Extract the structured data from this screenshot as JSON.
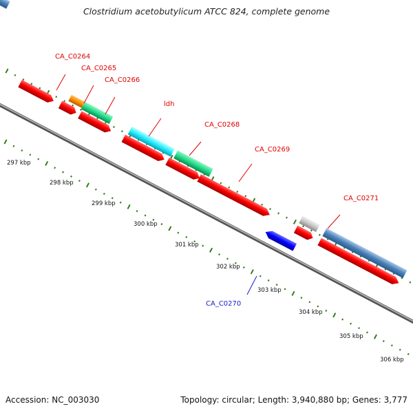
{
  "header": {
    "title": "Clostridium acetobutylicum ATCC 824, complete genome"
  },
  "footer": {
    "accession": "Accession: NC_003030",
    "topology": "Topology: circular; Length: 3,940,880 bp; Genes: 3,777"
  },
  "colors": {
    "backbone": "#8a8a8a",
    "tick": "#2e7d1a",
    "label_red": "#e00000",
    "label_blue": "#1a1acc",
    "gene_red": "#ff0000",
    "gene_blue": "#0000ff"
  },
  "kbp_labels": [
    "297 kbp",
    "298 kbp",
    "299 kbp",
    "300 kbp",
    "301 kbp",
    "302 kbp",
    "303 kbp",
    "304 kbp",
    "305 kbp",
    "306 kbp"
  ],
  "gene_labels": [
    {
      "text": "CA_C0264",
      "color": "red"
    },
    {
      "text": "CA_C0265",
      "color": "red"
    },
    {
      "text": "CA_C0266",
      "color": "red"
    },
    {
      "text": "ldh",
      "color": "red"
    },
    {
      "text": "CA_C0268",
      "color": "red"
    },
    {
      "text": "CA_C0269",
      "color": "red"
    },
    {
      "text": "CA_C0271",
      "color": "red"
    },
    {
      "text": "CA_C0270",
      "color": "blue"
    }
  ]
}
